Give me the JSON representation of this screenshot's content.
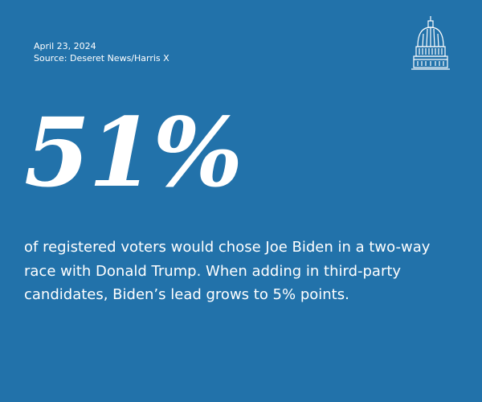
{
  "date": "April 23, 2024",
  "source": "Source: Deseret News/Harris X",
  "logo_icon": "capitol-dome-icon",
  "stat": "51%",
  "description": "of registered voters would chose Joe Biden in a two-way race with Donald Trump. When adding in third-party candidates, Biden’s lead grows to 5% points.",
  "colors": {
    "background": "#2272aa",
    "text": "#ffffff"
  }
}
